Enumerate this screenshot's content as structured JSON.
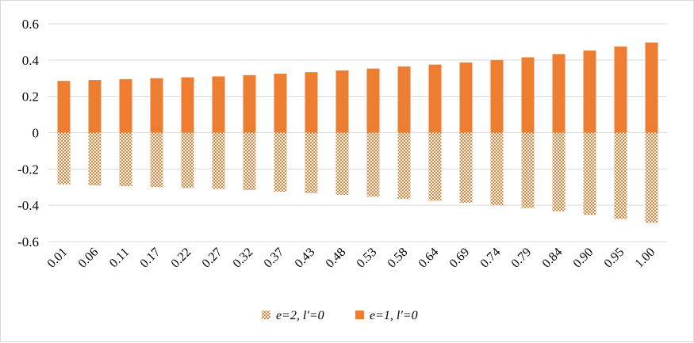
{
  "chart_data": {
    "type": "bar",
    "categories": [
      "0.01",
      "0.06",
      "0.11",
      "0.17",
      "0.22",
      "0.27",
      "0.32",
      "0.37",
      "0.43",
      "0.48",
      "0.53",
      "0.58",
      "0.64",
      "0.69",
      "0.74",
      "0.79",
      "0.84",
      "0.90",
      "0.95",
      "1.00"
    ],
    "series": [
      {
        "name": "e=2, l′=0",
        "pattern": "checkered",
        "color": "#ed7d31",
        "values": [
          -0.285,
          -0.29,
          -0.295,
          -0.3,
          -0.305,
          -0.31,
          -0.317,
          -0.325,
          -0.333,
          -0.343,
          -0.353,
          -0.365,
          -0.375,
          -0.387,
          -0.4,
          -0.415,
          -0.433,
          -0.453,
          -0.475,
          -0.497
        ]
      },
      {
        "name": "e=1, l′=0",
        "pattern": "solid",
        "color": "#ed7d31",
        "values": [
          0.285,
          0.29,
          0.295,
          0.3,
          0.305,
          0.31,
          0.317,
          0.325,
          0.333,
          0.343,
          0.353,
          0.365,
          0.375,
          0.387,
          0.4,
          0.415,
          0.433,
          0.453,
          0.475,
          0.497
        ]
      }
    ],
    "yticks": [
      "0.6",
      "0.4",
      "0.2",
      "0",
      "-0.2",
      "-0.4",
      "-0.6"
    ],
    "ytick_values": [
      0.6,
      0.4,
      0.2,
      0,
      -0.2,
      -0.4,
      -0.6
    ],
    "ylim": [
      -0.6,
      0.6
    ],
    "grid": true,
    "legend_position": "bottom",
    "colors": {
      "bar": "#ed7d31",
      "grid": "#d9d9d9",
      "frame": "#d9d9d9"
    }
  }
}
